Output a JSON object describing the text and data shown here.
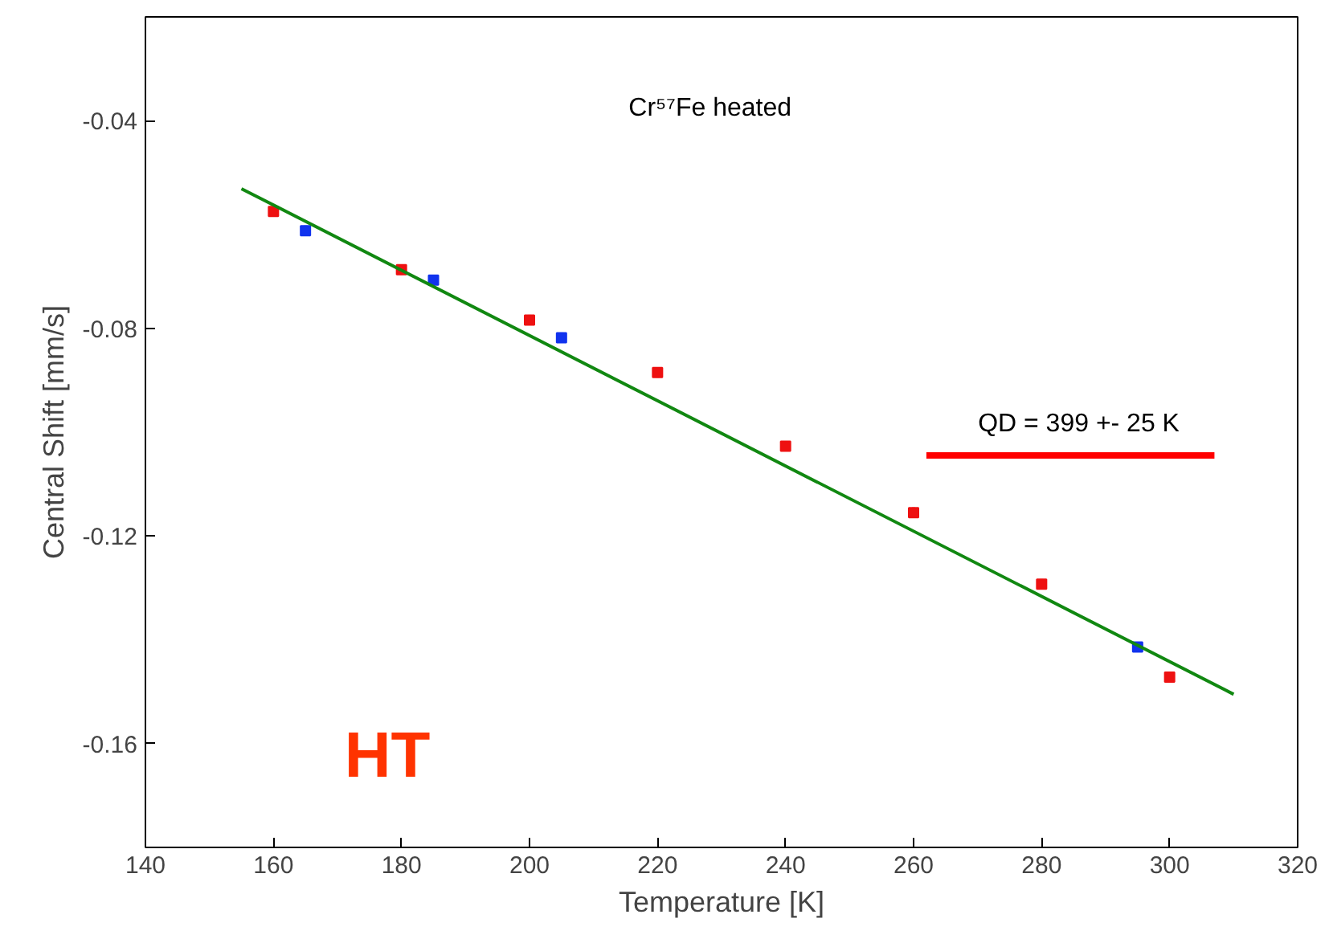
{
  "chart_data": {
    "type": "scatter",
    "xlabel": "Temperature [K]",
    "ylabel": "Central Shift [mm/s]",
    "xlim": [
      140,
      320
    ],
    "ylim": [
      -0.18,
      -0.02
    ],
    "xticks": [
      140,
      160,
      180,
      200,
      220,
      240,
      260,
      280,
      300,
      320
    ],
    "yticks": [
      -0.04,
      -0.08,
      -0.12,
      -0.16
    ],
    "grid": false,
    "annotations": [
      "Cr⁵⁷Fe heated",
      "QD = 399 +- 25 K",
      "HT"
    ],
    "series": [
      {
        "marker": "square",
        "color": "#ee1111",
        "x": [
          160,
          180,
          200,
          220,
          240,
          260,
          280,
          300
        ],
        "values": [
          -0.0575,
          -0.0687,
          -0.0784,
          -0.0885,
          -0.1027,
          -0.1155,
          -0.1293,
          -0.1472
        ],
        "errors": [
          0.001,
          0.001,
          0.001,
          0.001,
          0.001,
          0.001,
          0.001,
          0.001
        ]
      },
      {
        "marker": "square",
        "color": "#1133ee",
        "x": [
          165,
          185,
          205,
          295
        ],
        "values": [
          -0.0612,
          -0.0707,
          -0.0818,
          -0.1414
        ],
        "errors": [
          0.001,
          0.001,
          0.001,
          0.001
        ]
      },
      {
        "type": "line",
        "color": "#118811",
        "x": [
          155,
          310
        ],
        "values": [
          -0.0531,
          -0.1505
        ]
      },
      {
        "type": "line",
        "color": "#ff0000",
        "x": [
          262,
          307
        ],
        "values": [
          -0.1045,
          -0.1045
        ]
      }
    ]
  }
}
